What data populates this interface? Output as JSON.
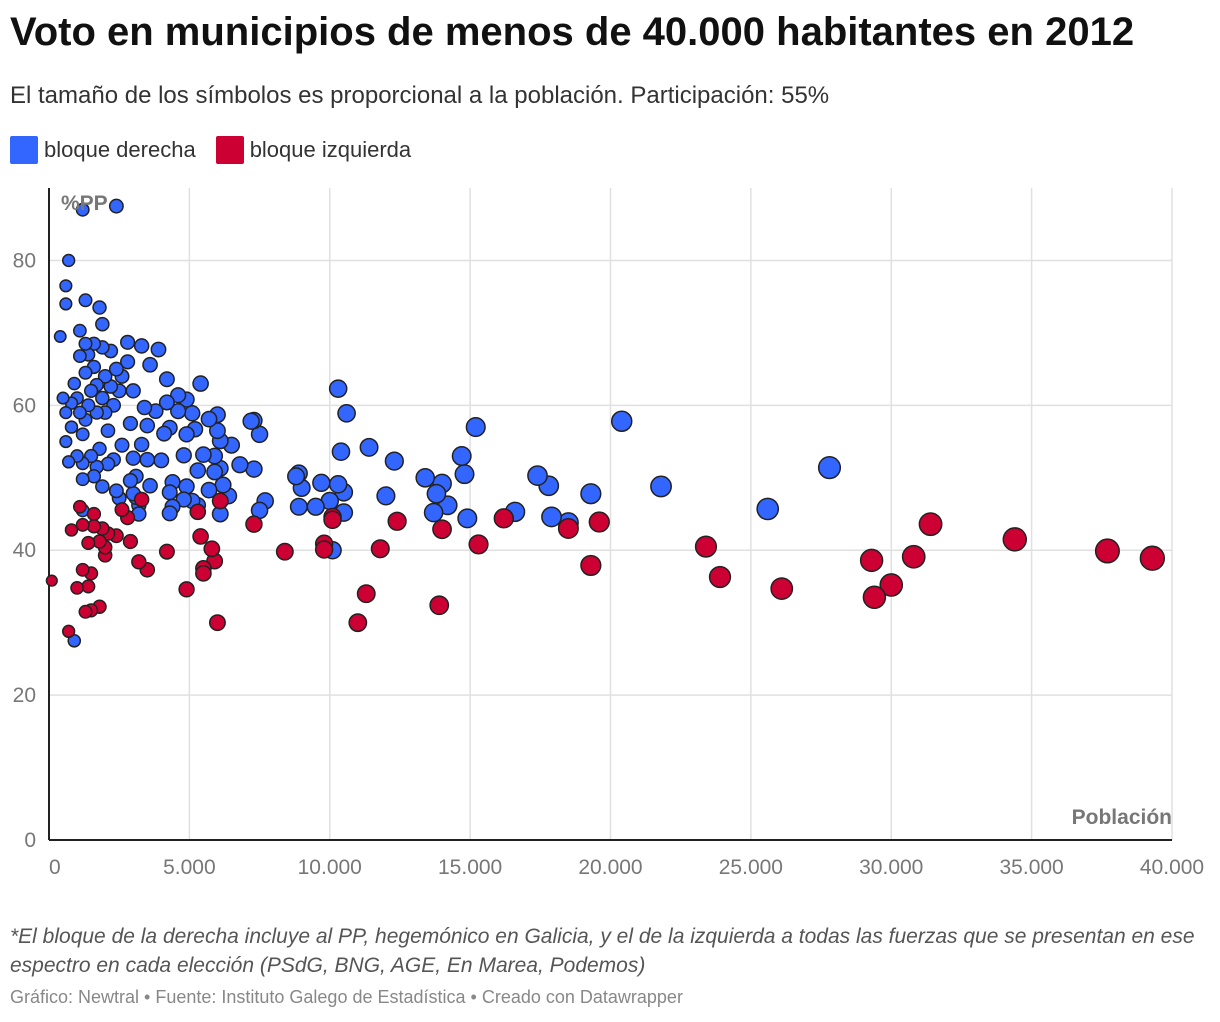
{
  "title": "Voto en municipios de menos de 40.000 habitantes en 2012",
  "subtitle": "El tamaño de los símbolos es proporcional a la población. Participación: 55%",
  "legend": [
    {
      "label": "bloque derecha",
      "color": "#3366ff"
    },
    {
      "label": "bloque izquierda",
      "color": "#cc0033"
    }
  ],
  "notes": "*El bloque de la derecha incluye al PP, hegemónico en Galicia, y el de la izquierda a todas las fuerzas que se presentan en ese espectro en cada elección (PSdG, BNG, AGE, En Marea, Podemos)",
  "credits": "Gráfico: Newtral • Fuente: Instituto Galego de Estadística • Creado con Datawrapper",
  "chart_data": {
    "type": "scatter",
    "title": "Voto en municipios de menos de 40.000 habitantes en 2012",
    "xlabel": "Población",
    "ylabel": "%PP",
    "xlim": [
      0,
      40000
    ],
    "ylim": [
      0,
      90
    ],
    "x_ticks": [
      "0",
      "5.000",
      "10.000",
      "15.000",
      "20.000",
      "25.000",
      "30.000",
      "35.000",
      "40.000"
    ],
    "y_ticks": [
      "0",
      "20",
      "40",
      "60",
      "80"
    ],
    "grid": true,
    "series": [
      {
        "name": "bloque derecha",
        "color": "#3366ff",
        "points": [
          [
            1200,
            87
          ],
          [
            2400,
            87.5
          ],
          [
            700,
            80
          ],
          [
            600,
            76.5
          ],
          [
            600,
            74
          ],
          [
            1300,
            74.5
          ],
          [
            1800,
            73.5
          ],
          [
            400,
            69.5
          ],
          [
            1100,
            70.3
          ],
          [
            1900,
            71.2
          ],
          [
            1300,
            68.5
          ],
          [
            1600,
            68.5
          ],
          [
            1900,
            68
          ],
          [
            2200,
            67.5
          ],
          [
            2800,
            68.7
          ],
          [
            3300,
            68.2
          ],
          [
            3900,
            67.7
          ],
          [
            1100,
            66.8
          ],
          [
            1400,
            67
          ],
          [
            2800,
            66
          ],
          [
            1600,
            65.3
          ],
          [
            2400,
            65
          ],
          [
            3600,
            65.6
          ],
          [
            1300,
            64.5
          ],
          [
            2000,
            64
          ],
          [
            2600,
            64
          ],
          [
            4200,
            63.6
          ],
          [
            5400,
            63
          ],
          [
            900,
            63
          ],
          [
            1700,
            62.8
          ],
          [
            2200,
            62.6
          ],
          [
            1500,
            62
          ],
          [
            2500,
            62
          ],
          [
            3000,
            62
          ],
          [
            4600,
            61.4
          ],
          [
            500,
            61
          ],
          [
            1000,
            61
          ],
          [
            1900,
            61
          ],
          [
            4200,
            60.4
          ],
          [
            4900,
            60.8
          ],
          [
            800,
            60.3
          ],
          [
            1400,
            60
          ],
          [
            2300,
            60
          ],
          [
            3400,
            59.7
          ],
          [
            600,
            59
          ],
          [
            1100,
            59
          ],
          [
            1700,
            59
          ],
          [
            2000,
            59
          ],
          [
            3800,
            59.2
          ],
          [
            4600,
            59.2
          ],
          [
            5100,
            58.9
          ],
          [
            6000,
            58.7
          ],
          [
            7200,
            57.8
          ],
          [
            7300,
            57.9
          ],
          [
            5700,
            58.1
          ],
          [
            1300,
            58
          ],
          [
            2900,
            57.5
          ],
          [
            3500,
            57.2
          ],
          [
            4300,
            56.9
          ],
          [
            5200,
            56.7
          ],
          [
            6000,
            56.5
          ],
          [
            7500,
            56
          ],
          [
            800,
            57
          ],
          [
            1200,
            56
          ],
          [
            2100,
            56.5
          ],
          [
            4100,
            56.1
          ],
          [
            4900,
            56
          ],
          [
            6100,
            55.1
          ],
          [
            6500,
            54.5
          ],
          [
            2600,
            54.5
          ],
          [
            3300,
            54.6
          ],
          [
            1800,
            54
          ],
          [
            1000,
            53
          ],
          [
            1500,
            53
          ],
          [
            600,
            55
          ],
          [
            2300,
            52.5
          ],
          [
            3000,
            52.7
          ],
          [
            3500,
            52.5
          ],
          [
            4000,
            52.4
          ],
          [
            4800,
            53.1
          ],
          [
            5500,
            53.2
          ],
          [
            5900,
            53
          ],
          [
            1200,
            52
          ],
          [
            1700,
            51.5
          ],
          [
            700,
            52.2
          ],
          [
            2100,
            51.9
          ],
          [
            6100,
            51.3
          ],
          [
            6800,
            51.8
          ],
          [
            7300,
            51.2
          ],
          [
            3100,
            50.2
          ],
          [
            5300,
            51
          ],
          [
            5900,
            50.8
          ],
          [
            1600,
            50.2
          ],
          [
            1200,
            49.8
          ],
          [
            2900,
            49.6
          ],
          [
            4400,
            49.4
          ],
          [
            8800,
            50.2
          ],
          [
            8900,
            50.6
          ],
          [
            9700,
            49.3
          ],
          [
            10300,
            49.1
          ],
          [
            3600,
            48.9
          ],
          [
            1900,
            48.8
          ],
          [
            4900,
            48.8
          ],
          [
            6200,
            49
          ],
          [
            2400,
            48.2
          ],
          [
            3000,
            47.8
          ],
          [
            4300,
            48
          ],
          [
            5700,
            48.3
          ],
          [
            9000,
            48.6
          ],
          [
            10500,
            48
          ],
          [
            2500,
            47.2
          ],
          [
            3100,
            47.3
          ],
          [
            4800,
            47
          ],
          [
            5100,
            46.8
          ],
          [
            6400,
            47.5
          ],
          [
            7700,
            46.8
          ],
          [
            10000,
            46.8
          ],
          [
            3200,
            46.2
          ],
          [
            4400,
            46
          ],
          [
            5300,
            46.2
          ],
          [
            7500,
            45.5
          ],
          [
            4300,
            45.1
          ],
          [
            8900,
            46
          ],
          [
            9500,
            46
          ],
          [
            1200,
            45.5
          ],
          [
            3200,
            45
          ],
          [
            6100,
            45
          ],
          [
            10500,
            45.2
          ],
          [
            10300,
            62.3
          ],
          [
            10600,
            58.9
          ],
          [
            11400,
            54.2
          ],
          [
            10400,
            53.6
          ],
          [
            12300,
            52.3
          ],
          [
            13400,
            50
          ],
          [
            14000,
            49.2
          ],
          [
            13800,
            47.8
          ],
          [
            12000,
            47.5
          ],
          [
            14200,
            46.2
          ],
          [
            13700,
            45.2
          ],
          [
            14900,
            44.4
          ],
          [
            14700,
            53
          ],
          [
            14800,
            50.5
          ],
          [
            15200,
            57
          ],
          [
            16600,
            45.3
          ],
          [
            17400,
            50.3
          ],
          [
            17800,
            48.9
          ],
          [
            17900,
            44.6
          ],
          [
            18500,
            43.8
          ],
          [
            19300,
            47.8
          ],
          [
            20400,
            57.8
          ],
          [
            21800,
            48.8
          ],
          [
            25600,
            45.7
          ],
          [
            27800,
            51.4
          ],
          [
            900,
            27.5
          ],
          [
            10100,
            40
          ]
        ]
      },
      {
        "name": "bloque izquierda",
        "color": "#cc0033",
        "points": [
          [
            100,
            35.8
          ],
          [
            700,
            28.8
          ],
          [
            800,
            42.8
          ],
          [
            1000,
            34.8
          ],
          [
            1100,
            46
          ],
          [
            1200,
            43.5
          ],
          [
            1200,
            37.3
          ],
          [
            1300,
            31.5
          ],
          [
            1400,
            41
          ],
          [
            1400,
            35
          ],
          [
            1500,
            31.7
          ],
          [
            1500,
            36.8
          ],
          [
            1600,
            45
          ],
          [
            1600,
            43.3
          ],
          [
            1800,
            41.2
          ],
          [
            1800,
            32.2
          ],
          [
            1900,
            43
          ],
          [
            2000,
            39.3
          ],
          [
            2000,
            40.4
          ],
          [
            2100,
            42.3
          ],
          [
            2400,
            42
          ],
          [
            2600,
            45.6
          ],
          [
            2800,
            44.5
          ],
          [
            2900,
            41.2
          ],
          [
            3200,
            38.4
          ],
          [
            3500,
            37.3
          ],
          [
            3300,
            47
          ],
          [
            4200,
            39.8
          ],
          [
            4900,
            34.6
          ],
          [
            5300,
            45.3
          ],
          [
            5400,
            41.9
          ],
          [
            5500,
            37.5
          ],
          [
            5500,
            36.8
          ],
          [
            5800,
            40.2
          ],
          [
            5900,
            38.5
          ],
          [
            6000,
            30
          ],
          [
            6100,
            46.8
          ],
          [
            7300,
            43.6
          ],
          [
            8400,
            39.8
          ],
          [
            9800,
            40.9
          ],
          [
            9800,
            40.1
          ],
          [
            10100,
            44.6
          ],
          [
            10100,
            44.2
          ],
          [
            11000,
            30
          ],
          [
            11300,
            34
          ],
          [
            11800,
            40.2
          ],
          [
            12400,
            44
          ],
          [
            13900,
            32.4
          ],
          [
            14000,
            42.9
          ],
          [
            15300,
            40.8
          ],
          [
            16200,
            44.4
          ],
          [
            18500,
            43
          ],
          [
            19300,
            37.9
          ],
          [
            19600,
            43.9
          ],
          [
            23400,
            40.5
          ],
          [
            23900,
            36.3
          ],
          [
            26100,
            34.7
          ],
          [
            29300,
            38.6
          ],
          [
            29400,
            33.5
          ],
          [
            30000,
            35.2
          ],
          [
            30800,
            39.1
          ],
          [
            31400,
            43.6
          ],
          [
            34400,
            41.5
          ],
          [
            37700,
            39.9
          ],
          [
            39300,
            38.9
          ]
        ]
      }
    ]
  }
}
